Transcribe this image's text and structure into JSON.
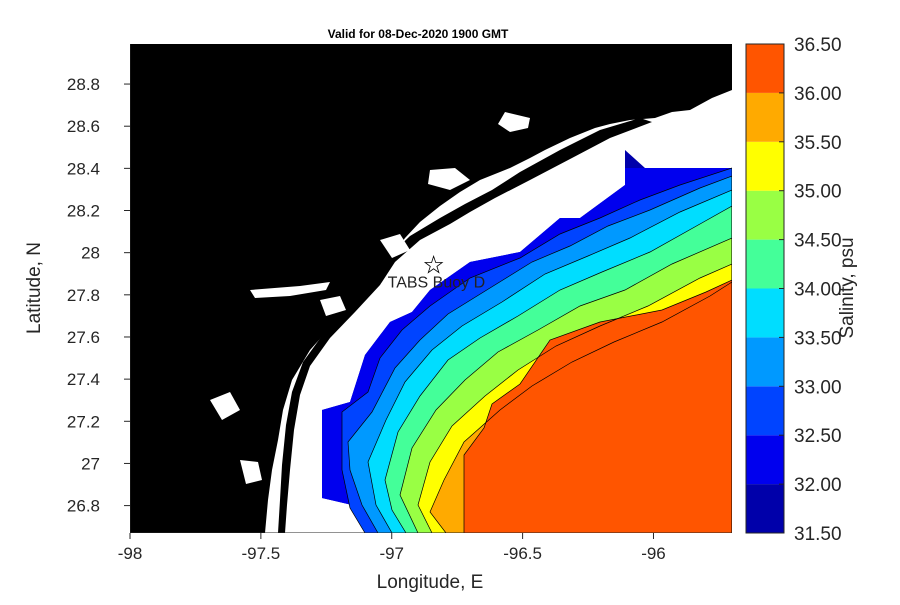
{
  "chart_data": {
    "type": "heatmap",
    "title": "Valid for 08-Dec-2020 1900 GMT",
    "xlabel": "Longitude, E",
    "ylabel": "Latitude, N",
    "xlim": [
      -98.0,
      -95.7
    ],
    "ylim": [
      26.67,
      28.99
    ],
    "x_ticks": [
      -98,
      -97.5,
      -97,
      -96.5,
      -96
    ],
    "x_tick_labels": [
      "-98",
      "-97.5",
      "-97",
      "-96.5",
      "-96"
    ],
    "y_ticks": [
      26.8,
      27,
      27.2,
      27.4,
      27.6,
      27.8,
      28,
      28.2,
      28.4,
      28.6,
      28.8
    ],
    "y_tick_labels": [
      "26.8",
      "27",
      "27.2",
      "27.4",
      "27.6",
      "27.8",
      "28",
      "28.2",
      "28.4",
      "28.6",
      "28.8"
    ],
    "colorbar": {
      "label": "Salinity, psu",
      "levels": [
        31.5,
        32.0,
        32.5,
        33.0,
        33.5,
        34.0,
        34.5,
        35.0,
        35.5,
        36.0,
        36.5
      ],
      "tick_labels": [
        "31.50",
        "32.00",
        "32.50",
        "33.00",
        "33.50",
        "34.00",
        "34.50",
        "35.00",
        "35.50",
        "36.00",
        "36.50"
      ],
      "colors": [
        "#0000aa",
        "#0000ee",
        "#0044ff",
        "#0099ff",
        "#00ddff",
        "#44ff99",
        "#99ff44",
        "#ffff00",
        "#ffaa00",
        "#ff5500"
      ]
    },
    "land_color": "#000000",
    "annotation": {
      "text": "TABS Buoy D",
      "lon": -96.84,
      "lat": 27.94
    }
  }
}
